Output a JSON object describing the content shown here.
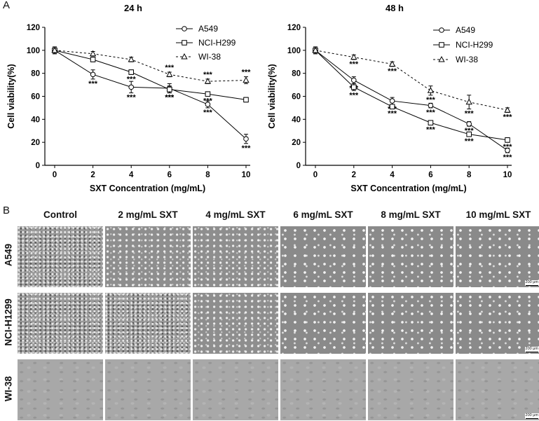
{
  "figure": {
    "panel_a": "A",
    "panel_b": "B"
  },
  "chart_data": [
    {
      "type": "line",
      "title": "24 h",
      "xlabel": "SXT Concentration (mg/mL)",
      "ylabel": "Cell viability(%)",
      "xlim": [
        0,
        10
      ],
      "ylim": [
        0,
        120
      ],
      "xticks": [
        0,
        2,
        4,
        6,
        8,
        10
      ],
      "yticks": [
        0,
        20,
        40,
        60,
        80,
        100,
        120
      ],
      "legend_position": "top-right",
      "x": [
        0,
        2,
        4,
        6,
        8,
        10
      ],
      "series": [
        {
          "name": "A549",
          "marker": "circle",
          "line": "solid",
          "values": [
            100,
            79,
            68,
            67,
            53,
            23
          ],
          "errors": [
            3,
            4,
            5,
            4,
            3,
            4
          ],
          "sig": [
            "",
            "***",
            "***",
            "***",
            "***",
            "***"
          ]
        },
        {
          "name": "NCI-H299",
          "marker": "square",
          "line": "solid",
          "values": [
            100,
            92,
            81,
            66,
            62,
            57
          ],
          "errors": [
            3,
            2,
            2,
            3,
            2,
            2
          ],
          "sig": [
            "",
            "",
            "***",
            "***",
            "***",
            ""
          ]
        },
        {
          "name": "WI-38",
          "marker": "triangle",
          "line": "dashed",
          "values": [
            100,
            97,
            92,
            79,
            73,
            74
          ],
          "errors": [
            2,
            2,
            2,
            2,
            2,
            3
          ],
          "sig": [
            "",
            "",
            "",
            "***",
            "***",
            "***"
          ]
        }
      ]
    },
    {
      "type": "line",
      "title": "48 h",
      "xlabel": "SXT Concentration (mg/mL)",
      "ylabel": "Cell viability(%)",
      "xlim": [
        0,
        10
      ],
      "ylim": [
        0,
        120
      ],
      "xticks": [
        0,
        2,
        4,
        6,
        8,
        10
      ],
      "yticks": [
        0,
        20,
        40,
        60,
        80,
        100,
        120
      ],
      "legend_position": "top-right",
      "x": [
        0,
        2,
        4,
        6,
        8,
        10
      ],
      "series": [
        {
          "name": "A549",
          "marker": "circle",
          "line": "solid",
          "values": [
            100,
            74,
            56,
            52,
            36,
            13
          ],
          "errors": [
            3,
            3,
            3,
            2,
            2,
            2
          ],
          "sig": [
            "",
            "***",
            "***",
            "***",
            "***",
            "***"
          ]
        },
        {
          "name": "NCI-H299",
          "marker": "square",
          "line": "solid",
          "values": [
            100,
            68,
            51,
            37,
            27,
            22
          ],
          "errors": [
            3,
            3,
            2,
            2,
            2,
            2
          ],
          "sig": [
            "",
            "***",
            "***",
            "***",
            "***",
            "***"
          ]
        },
        {
          "name": "WI-38",
          "marker": "triangle",
          "line": "dashed",
          "values": [
            100,
            94,
            88,
            65,
            55,
            48
          ],
          "errors": [
            2,
            2,
            2,
            4,
            6,
            2
          ],
          "sig": [
            "",
            "***",
            "***",
            "***",
            "***",
            "***"
          ]
        }
      ]
    }
  ],
  "panel_b": {
    "columns": [
      "Control",
      "2 mg/mL SXT",
      "4 mg/mL SXT",
      "6 mg/mL SXT",
      "8 mg/mL SXT",
      "10 mg/mL SXT"
    ],
    "rows": [
      "A549",
      "NCI-H1299",
      "WI-38"
    ],
    "scale_bar_label": "200 μm"
  }
}
